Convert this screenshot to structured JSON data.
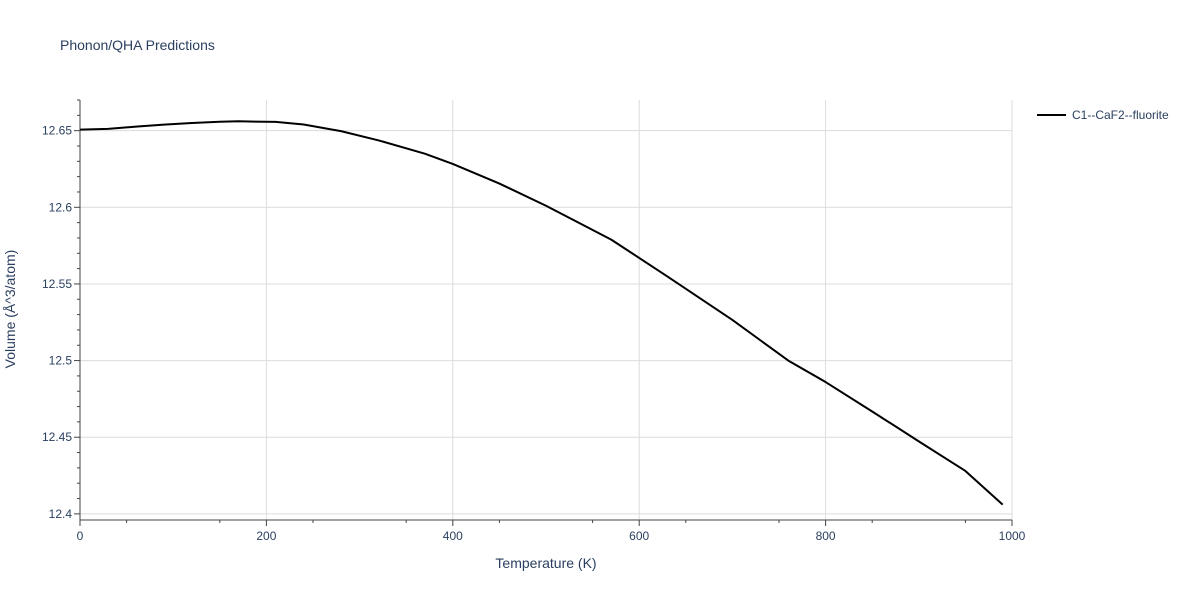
{
  "chart_data": {
    "type": "line",
    "title": "Phonon/QHA Predictions",
    "xlabel": "Temperature (K)",
    "ylabel": "Volume (Å^3/atom)",
    "xlim": [
      0,
      1000
    ],
    "ylim": [
      12.396,
      12.67
    ],
    "x_ticks": [
      0,
      200,
      400,
      600,
      800,
      1000
    ],
    "x_tick_labels": [
      "0",
      "200",
      "400",
      "600",
      "800",
      "1000"
    ],
    "y_ticks": [
      12.4,
      12.45,
      12.5,
      12.55,
      12.6,
      12.65
    ],
    "y_tick_labels": [
      "12.4",
      "12.45",
      "12.5",
      "12.55",
      "12.6",
      "12.65"
    ],
    "grid": true,
    "legend_position": "top-right",
    "series": [
      {
        "name": "C1--CaF2--fluorite",
        "color": "#000000",
        "x": [
          0,
          30,
          60,
          90,
          120,
          150,
          170,
          210,
          240,
          280,
          320,
          370,
          400,
          450,
          500,
          570,
          630,
          700,
          760,
          800,
          850,
          900,
          950,
          990
        ],
        "y": [
          12.6507,
          12.6512,
          12.6526,
          12.6539,
          12.655,
          12.6558,
          12.6561,
          12.6557,
          12.654,
          12.6497,
          12.6437,
          12.635,
          12.6283,
          12.6155,
          12.601,
          12.5789,
          12.555,
          12.5265,
          12.5,
          12.486,
          12.4668,
          12.4473,
          12.428,
          12.406
        ]
      }
    ]
  }
}
